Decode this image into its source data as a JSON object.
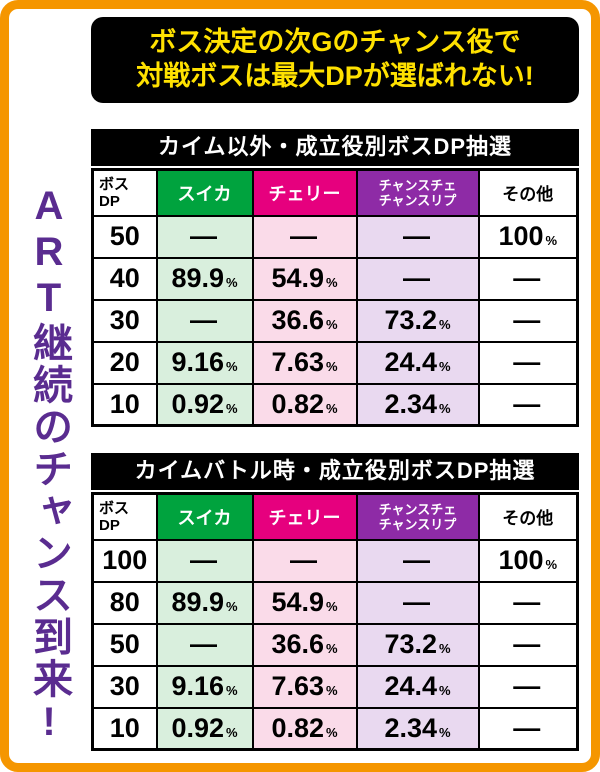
{
  "banner": {
    "line1": "ボス決定の次Gのチャンス役で",
    "line2": "対戦ボスは最大DPが選ばれない!"
  },
  "side_text": "ART継続のチャンス到来!",
  "colors": {
    "frame_orange": "#f59600",
    "banner_yellow": "#ffe100",
    "side_purple": "#5a2c90",
    "suika_green": "#00a33e",
    "cherry_pink": "#e6007e",
    "chance_purple": "#8e2ba6",
    "suika_tint": "#d9efdd",
    "cherry_tint": "#fadbe9",
    "chance_tint": "#e9d9f0"
  },
  "chart_data": [
    {
      "type": "table",
      "title": "カイム以外・成立役別ボスDP抽選",
      "columns": [
        "ボスDP",
        "スイカ",
        "チェリー",
        "チャンスチェ/チャンスリプ",
        "その他"
      ],
      "headers": {
        "dp_line1": "ボス",
        "dp_line2": "DP",
        "suika": "スイカ",
        "cherry": "チェリー",
        "chance_line1": "チャンスチェ",
        "chance_line2": "チャンスリプ",
        "other": "その他"
      },
      "rows": [
        {
          "dp": "50",
          "suika": {
            "v": "―",
            "s": ""
          },
          "cherry": {
            "v": "―",
            "s": ""
          },
          "chance": {
            "v": "―",
            "s": ""
          },
          "other": {
            "v": "100",
            "s": "%"
          }
        },
        {
          "dp": "40",
          "suika": {
            "v": "89.9",
            "s": "%"
          },
          "cherry": {
            "v": "54.9",
            "s": "%"
          },
          "chance": {
            "v": "―",
            "s": ""
          },
          "other": {
            "v": "―",
            "s": ""
          }
        },
        {
          "dp": "30",
          "suika": {
            "v": "―",
            "s": ""
          },
          "cherry": {
            "v": "36.6",
            "s": "%"
          },
          "chance": {
            "v": "73.2",
            "s": "%"
          },
          "other": {
            "v": "―",
            "s": ""
          }
        },
        {
          "dp": "20",
          "suika": {
            "v": "9.16",
            "s": "%"
          },
          "cherry": {
            "v": "7.63",
            "s": "%"
          },
          "chance": {
            "v": "24.4",
            "s": "%"
          },
          "other": {
            "v": "―",
            "s": ""
          }
        },
        {
          "dp": "10",
          "suika": {
            "v": "0.92",
            "s": "%"
          },
          "cherry": {
            "v": "0.82",
            "s": "%"
          },
          "chance": {
            "v": "2.34",
            "s": "%"
          },
          "other": {
            "v": "―",
            "s": ""
          }
        }
      ]
    },
    {
      "type": "table",
      "title": "カイムバトル時・成立役別ボスDP抽選",
      "columns": [
        "ボスDP",
        "スイカ",
        "チェリー",
        "チャンスチェ/チャンスリプ",
        "その他"
      ],
      "headers": {
        "dp_line1": "ボス",
        "dp_line2": "DP",
        "suika": "スイカ",
        "cherry": "チェリー",
        "chance_line1": "チャンスチェ",
        "chance_line2": "チャンスリプ",
        "other": "その他"
      },
      "rows": [
        {
          "dp": "100",
          "suika": {
            "v": "―",
            "s": ""
          },
          "cherry": {
            "v": "―",
            "s": ""
          },
          "chance": {
            "v": "―",
            "s": ""
          },
          "other": {
            "v": "100",
            "s": "%"
          }
        },
        {
          "dp": "80",
          "suika": {
            "v": "89.9",
            "s": "%"
          },
          "cherry": {
            "v": "54.9",
            "s": "%"
          },
          "chance": {
            "v": "―",
            "s": ""
          },
          "other": {
            "v": "―",
            "s": ""
          }
        },
        {
          "dp": "50",
          "suika": {
            "v": "―",
            "s": ""
          },
          "cherry": {
            "v": "36.6",
            "s": "%"
          },
          "chance": {
            "v": "73.2",
            "s": "%"
          },
          "other": {
            "v": "―",
            "s": ""
          }
        },
        {
          "dp": "30",
          "suika": {
            "v": "9.16",
            "s": "%"
          },
          "cherry": {
            "v": "7.63",
            "s": "%"
          },
          "chance": {
            "v": "24.4",
            "s": "%"
          },
          "other": {
            "v": "―",
            "s": ""
          }
        },
        {
          "dp": "10",
          "suika": {
            "v": "0.92",
            "s": "%"
          },
          "cherry": {
            "v": "0.82",
            "s": "%"
          },
          "chance": {
            "v": "2.34",
            "s": "%"
          },
          "other": {
            "v": "―",
            "s": ""
          }
        }
      ]
    }
  ]
}
